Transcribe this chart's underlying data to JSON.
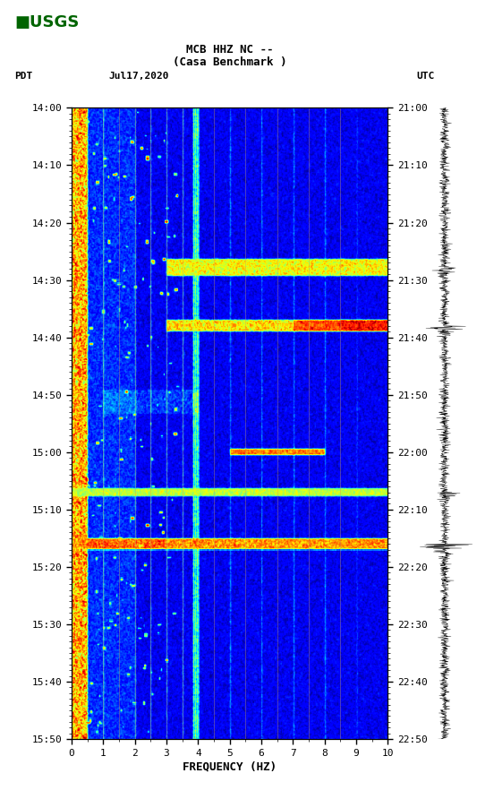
{
  "title_line1": "MCB HHZ NC --",
  "title_line2": "(Casa Benchmark )",
  "left_label": "PDT",
  "date_label": "Jul17,2020",
  "right_label": "UTC",
  "xlabel": "FREQUENCY (HZ)",
  "freq_min": 0,
  "freq_max": 10,
  "time_ticks_pdt": [
    "14:00",
    "14:10",
    "14:20",
    "14:30",
    "14:40",
    "14:50",
    "15:00",
    "15:10",
    "15:20",
    "15:30",
    "15:40",
    "15:50"
  ],
  "time_ticks_utc": [
    "21:00",
    "21:10",
    "21:20",
    "21:30",
    "21:40",
    "21:50",
    "22:00",
    "22:10",
    "22:20",
    "22:30",
    "22:40",
    "22:50"
  ],
  "freq_ticks": [
    0,
    1,
    2,
    3,
    4,
    5,
    6,
    7,
    8,
    9,
    10
  ],
  "background_color": "#ffffff",
  "usgs_green": "#006400",
  "seed": 42,
  "n_time": 660,
  "n_freq": 400
}
